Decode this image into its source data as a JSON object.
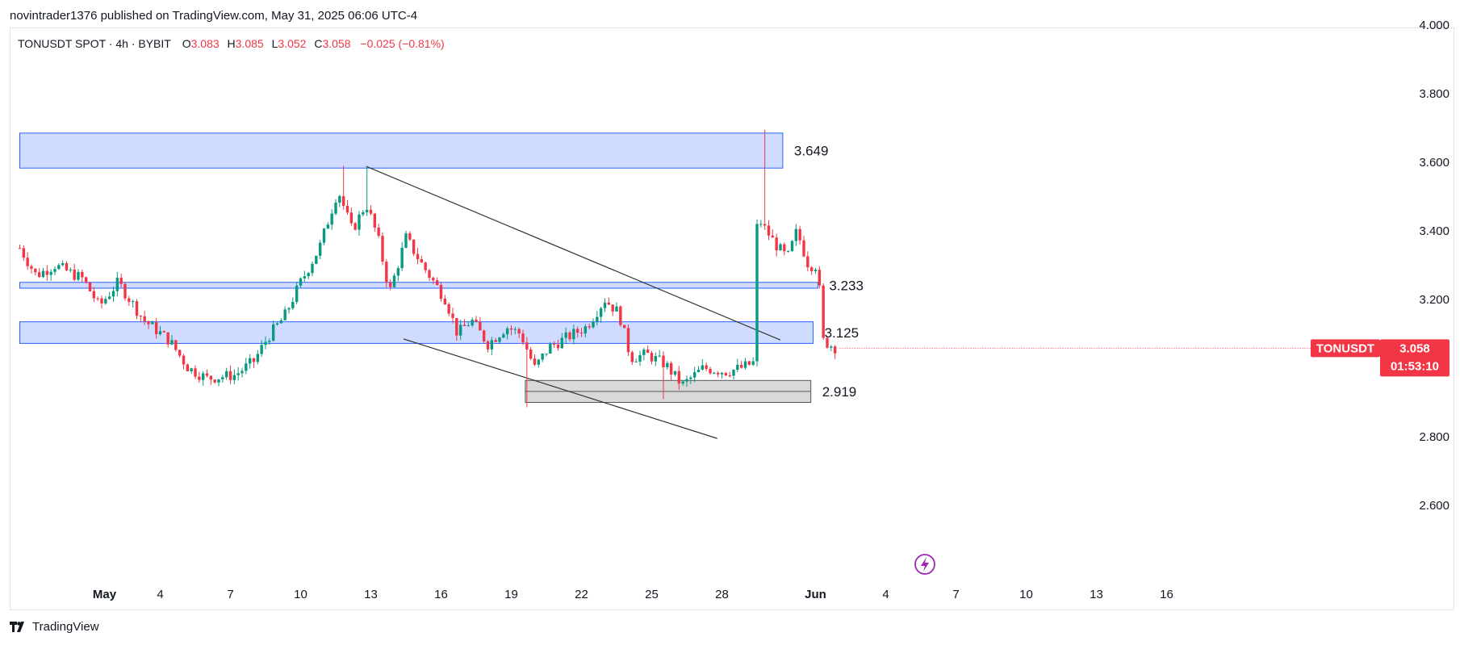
{
  "header": {
    "published_line": "novintrader1376 published on TradingView.com, May 31, 2025 06:06 UTC-4"
  },
  "legend": {
    "symbol_line": "TONUSDT SPOT · 4h · BYBIT",
    "open_label": "O",
    "open_value": "3.083",
    "high_label": "H",
    "high_value": "3.085",
    "low_label": "L",
    "low_value": "3.052",
    "close_label": "C",
    "close_value": "3.058",
    "change": "−0.025 (−0.81%)"
  },
  "footer": {
    "brand": "TradingView"
  },
  "colors": {
    "up": "#26a69a",
    "up_candle": "#089981",
    "down": "#f23645",
    "zone_fill": "#d0dcff",
    "zone_border": "#2962ff",
    "gray_zone_fill": "#d9d9d9",
    "gray_zone_border": "#555555",
    "line": "#333333",
    "price_tag": "#f23645",
    "lightning": "#9c27b0"
  },
  "icons": {
    "lightning": "lightning-icon",
    "logo": "tradingview-logo-icon"
  },
  "chart_data": {
    "type": "candlestick",
    "timeframe": "4h",
    "x_ticks": [
      "May",
      "4",
      "7",
      "10",
      "13",
      "16",
      "19",
      "22",
      "25",
      "28",
      "Jun",
      "4",
      "7",
      "10",
      "13",
      "16"
    ],
    "y_ticks": [
      "4.000",
      "3.800",
      "3.600",
      "3.400",
      "3.200",
      "2.800",
      "2.600"
    ],
    "ylim": [
      2.45,
      4.0
    ],
    "xlim_days": [
      -3,
      48
    ],
    "current_price": {
      "symbol": "TONUSDT",
      "price": "3.058",
      "countdown": "01:53:10",
      "value": 3.058
    },
    "zones": [
      {
        "label": "3.649",
        "top": 3.685,
        "bottom": 3.583,
        "x_start": -3,
        "x_end": 29.6,
        "style": "blue"
      },
      {
        "label": "3.233",
        "top": 3.25,
        "bottom": 3.233,
        "x_start": -3,
        "x_end": 31.1,
        "style": "blue"
      },
      {
        "label": "3.125",
        "top": 3.135,
        "bottom": 3.072,
        "x_start": -3,
        "x_end": 30.9,
        "style": "blue"
      },
      {
        "label": "2.919",
        "top": 2.964,
        "bottom": 2.9,
        "x_start": 18.6,
        "x_end": 30.8,
        "style": "gray",
        "mid": 2.932
      }
    ],
    "trendlines": [
      {
        "x1": 11.8,
        "y1": 3.588,
        "x2": 29.5,
        "y2": 3.082
      },
      {
        "x1": 13.4,
        "y1": 3.085,
        "x2": 26.8,
        "y2": 2.795
      }
    ],
    "path_points": [
      [
        -3,
        3.35
      ],
      [
        -2.3,
        3.27
      ],
      [
        -1.5,
        3.3
      ],
      [
        -0.3,
        3.26
      ],
      [
        0.4,
        3.18
      ],
      [
        1.2,
        3.25
      ],
      [
        2.3,
        3.14
      ],
      [
        3.4,
        3.08
      ],
      [
        4.2,
        3.0
      ],
      [
        5.0,
        2.97
      ],
      [
        6.2,
        2.98
      ],
      [
        7.0,
        3.02
      ],
      [
        7.6,
        3.09
      ],
      [
        8.3,
        3.15
      ],
      [
        9.0,
        3.25
      ],
      [
        9.8,
        3.35
      ],
      [
        10.6,
        3.52
      ],
      [
        11.2,
        3.4
      ],
      [
        11.8,
        3.48
      ],
      [
        12.3,
        3.38
      ],
      [
        12.8,
        3.22
      ],
      [
        13.5,
        3.38
      ],
      [
        14.2,
        3.3
      ],
      [
        15.2,
        3.2
      ],
      [
        15.7,
        3.1
      ],
      [
        16.3,
        3.14
      ],
      [
        17.0,
        3.07
      ],
      [
        17.8,
        3.12
      ],
      [
        18.4,
        3.1
      ],
      [
        19.0,
        3.0
      ],
      [
        19.6,
        3.06
      ],
      [
        20.4,
        3.09
      ],
      [
        21.2,
        3.12
      ],
      [
        22.0,
        3.2
      ],
      [
        22.6,
        3.16
      ],
      [
        23.1,
        3.03
      ],
      [
        23.8,
        3.04
      ],
      [
        24.6,
        3.01
      ],
      [
        25.3,
        2.95
      ],
      [
        26.2,
        3.0
      ],
      [
        27.2,
        2.99
      ],
      [
        27.8,
        3.0
      ],
      [
        28.5,
        3.02
      ],
      [
        28.7,
        3.42
      ],
      [
        29.3,
        3.36
      ],
      [
        29.8,
        3.32
      ],
      [
        30.2,
        3.4
      ],
      [
        30.7,
        3.3
      ],
      [
        31.1,
        3.3
      ],
      [
        31.3,
        3.08
      ],
      [
        31.9,
        3.058
      ]
    ],
    "notable_wicks": [
      {
        "day": 28.9,
        "high": 3.695
      },
      {
        "day": 10.9,
        "high": 3.59
      },
      {
        "day": 11.8,
        "high": 3.588
      },
      {
        "day": 18.6,
        "low": 2.886
      },
      {
        "day": 24.5,
        "low": 2.91
      }
    ]
  }
}
